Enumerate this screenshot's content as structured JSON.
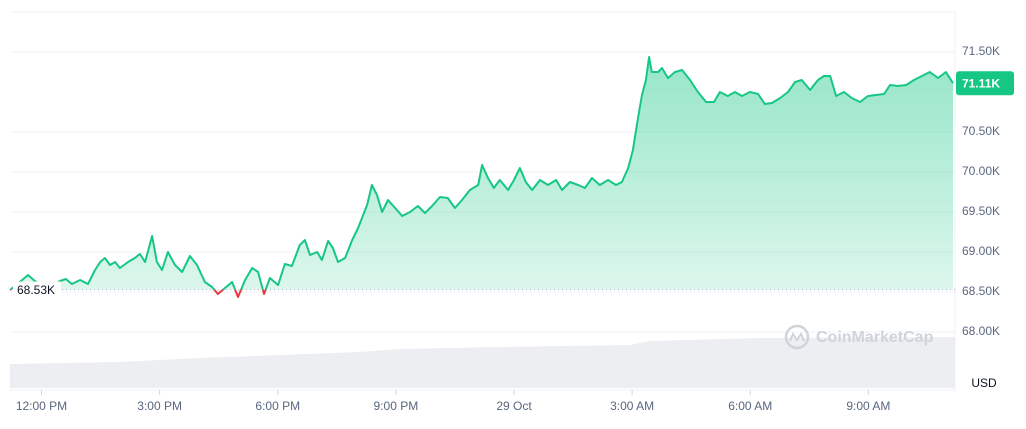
{
  "chart_data": {
    "type": "line",
    "x": [
      11.2,
      11.45,
      11.66,
      11.83,
      12.09,
      12.27,
      12.47,
      12.62,
      12.77,
      12.98,
      13.18,
      13.36,
      13.49,
      13.61,
      13.74,
      13.87,
      13.99,
      14.2,
      14.37,
      14.5,
      14.63,
      14.81,
      14.93,
      15.06,
      15.21,
      15.39,
      15.57,
      15.77,
      15.95,
      16.15,
      16.33,
      16.48,
      16.66,
      16.84,
      16.99,
      17.17,
      17.35,
      17.5,
      17.65,
      17.8,
      18.01,
      18.18,
      18.36,
      18.56,
      18.69,
      18.82,
      19.0,
      19.12,
      19.28,
      19.4,
      19.53,
      19.71,
      19.89,
      20.04,
      20.14,
      20.27,
      20.39,
      20.52,
      20.65,
      20.8,
      20.98,
      21.16,
      21.36,
      21.56,
      21.74,
      21.92,
      22.12,
      22.32,
      22.5,
      22.68,
      22.88,
      23.09,
      23.19,
      23.34,
      23.49,
      23.64,
      23.85,
      24.0,
      24.15,
      24.3,
      24.46,
      24.66,
      24.86,
      25.07,
      25.22,
      25.42,
      25.63,
      25.8,
      25.98,
      26.18,
      26.39,
      26.59,
      26.74,
      26.9,
      27.02,
      27.15,
      27.25,
      27.35,
      27.43,
      27.5,
      27.66,
      27.76,
      27.91,
      28.09,
      28.27,
      28.47,
      28.67,
      28.88,
      29.08,
      29.23,
      29.43,
      29.61,
      29.79,
      29.99,
      30.2,
      30.37,
      30.55,
      30.76,
      30.96,
      31.14,
      31.31,
      31.52,
      31.72,
      31.87,
      32.03,
      32.18,
      32.38,
      32.58,
      32.79,
      32.99,
      33.19,
      33.4,
      33.55,
      33.75,
      33.96,
      34.16,
      34.36,
      34.56,
      34.77,
      34.97,
      35.15
    ],
    "values": [
      68525,
      68625,
      68712,
      68637,
      68550,
      68575,
      68637,
      68662,
      68600,
      68650,
      68600,
      68775,
      68875,
      68925,
      68837,
      68875,
      68800,
      68875,
      68925,
      68975,
      68875,
      69200,
      68875,
      68775,
      69000,
      68837,
      68750,
      68950,
      68837,
      68625,
      68562,
      68475,
      68550,
      68625,
      68437,
      68650,
      68800,
      68750,
      68475,
      68675,
      68587,
      68850,
      68825,
      69087,
      69150,
      68962,
      69000,
      68900,
      69137,
      69050,
      68875,
      68925,
      69150,
      69300,
      69425,
      69587,
      69837,
      69712,
      69500,
      69650,
      69550,
      69450,
      69500,
      69575,
      69487,
      69575,
      69687,
      69675,
      69550,
      69650,
      69775,
      69837,
      70087,
      69925,
      69800,
      69900,
      69775,
      69900,
      70050,
      69875,
      69775,
      69900,
      69837,
      69900,
      69775,
      69875,
      69837,
      69800,
      69925,
      69837,
      69900,
      69837,
      69875,
      70050,
      70275,
      70675,
      70962,
      71150,
      71437,
      71250,
      71250,
      71300,
      71175,
      71250,
      71275,
      71150,
      71000,
      70875,
      70875,
      71000,
      70950,
      71000,
      70950,
      71000,
      70975,
      70850,
      70862,
      70925,
      71000,
      71125,
      71150,
      71025,
      71150,
      71200,
      71200,
      70950,
      71000,
      70925,
      70875,
      70950,
      70962,
      70975,
      71087,
      71075,
      71087,
      71150,
      71200,
      71250,
      71175,
      71250,
      71110
    ],
    "color": "#16c784",
    "below_color": "#ea3943",
    "reference": {
      "value": 68530,
      "label": "68.53K"
    },
    "last_value_label": "71.11K",
    "xlim": [
      11.2,
      35.2
    ],
    "xticks": [
      {
        "value": 12,
        "label": "12:00 PM"
      },
      {
        "value": 15,
        "label": "3:00 PM"
      },
      {
        "value": 18,
        "label": "6:00 PM"
      },
      {
        "value": 21,
        "label": "9:00 PM"
      },
      {
        "value": 24,
        "label": "29 Oct"
      },
      {
        "value": 27,
        "label": "3:00 AM"
      },
      {
        "value": 30,
        "label": "6:00 AM"
      },
      {
        "value": 33,
        "label": "9:00 AM"
      }
    ],
    "ylim": [
      67300,
      72000
    ],
    "yticks": [
      {
        "value": 68000,
        "label": "68.00K"
      },
      {
        "value": 68500,
        "label": "68.50K"
      },
      {
        "value": 69000,
        "label": "69.00K"
      },
      {
        "value": 69500,
        "label": "69.50K"
      },
      {
        "value": 70000,
        "label": "70.00K"
      },
      {
        "value": 70500,
        "label": "70.50K"
      },
      {
        "value": 71500,
        "label": "71.50K"
      }
    ],
    "y_unit_label": "USD",
    "watermark": "CoinMarketCap",
    "grid": true
  }
}
